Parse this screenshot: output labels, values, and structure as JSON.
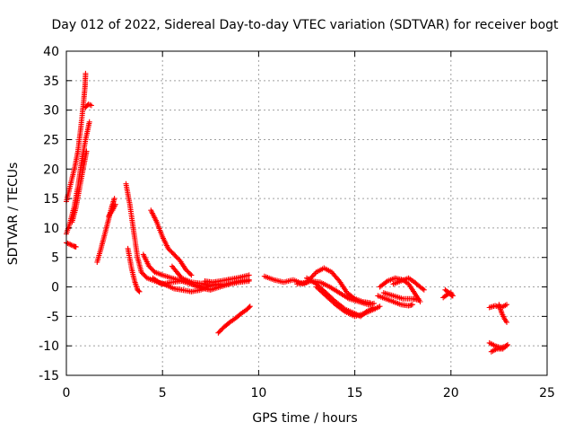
{
  "chart_data": {
    "type": "scatter",
    "title": "Day 012 of 2022, Sidereal Day-to-day VTEC variation (SDTVAR) for receiver bogt",
    "xlabel": "GPS time / hours",
    "ylabel": "SDTVAR / TECUs",
    "xlim": [
      0,
      25
    ],
    "ylim": [
      -15,
      40
    ],
    "xticks": [
      "0",
      "5",
      "10",
      "15",
      "20",
      "25"
    ],
    "yticks": [
      "-15",
      "-10",
      "-5",
      "0",
      "5",
      "10",
      "15",
      "20",
      "25",
      "30",
      "35",
      "40"
    ],
    "grid": true,
    "marker": "plus",
    "series_color": "#ff0000",
    "segments": [
      [
        [
          0.0,
          7.5
        ],
        [
          0.2,
          7.2
        ],
        [
          0.4,
          6.9
        ],
        [
          0.5,
          6.8
        ]
      ],
      [
        [
          0.0,
          14.5
        ],
        [
          0.15,
          16.5
        ],
        [
          0.3,
          18.5
        ],
        [
          0.45,
          20.5
        ],
        [
          0.6,
          23
        ],
        [
          0.75,
          27
        ],
        [
          0.9,
          31.5
        ],
        [
          0.97,
          34
        ],
        [
          1.0,
          36.2
        ]
      ],
      [
        [
          0.0,
          9.0
        ],
        [
          0.2,
          11.0
        ],
        [
          0.4,
          13.5
        ],
        [
          0.6,
          17.0
        ],
        [
          0.8,
          21.5
        ],
        [
          1.0,
          25.0
        ],
        [
          1.2,
          28.0
        ]
      ],
      [
        [
          0.3,
          11.0
        ],
        [
          0.5,
          13.5
        ],
        [
          0.7,
          17.0
        ],
        [
          0.9,
          20.5
        ],
        [
          1.05,
          23.0
        ]
      ],
      [
        [
          1.0,
          30.5
        ],
        [
          1.15,
          31.0
        ],
        [
          1.3,
          30.8
        ]
      ],
      [
        [
          1.6,
          4.2
        ],
        [
          1.8,
          6.5
        ],
        [
          2.0,
          9.0
        ],
        [
          2.2,
          11.5
        ],
        [
          2.35,
          13.5
        ],
        [
          2.5,
          15.0
        ]
      ],
      [
        [
          2.2,
          12.0
        ],
        [
          2.4,
          13.0
        ],
        [
          2.55,
          14.0
        ]
      ],
      [
        [
          3.1,
          17.5
        ],
        [
          3.3,
          14.0
        ],
        [
          3.5,
          9.5
        ],
        [
          3.7,
          5.0
        ],
        [
          3.9,
          2.5
        ],
        [
          4.2,
          1.5
        ],
        [
          4.6,
          1.0
        ],
        [
          5.0,
          0.5
        ],
        [
          5.5,
          0.8
        ],
        [
          6.0,
          1.0
        ],
        [
          6.5,
          0.5
        ],
        [
          7.0,
          0.0
        ],
        [
          7.5,
          -0.5
        ]
      ],
      [
        [
          3.2,
          6.5
        ],
        [
          3.4,
          3.0
        ],
        [
          3.55,
          1.0
        ],
        [
          3.7,
          -0.5
        ],
        [
          3.8,
          -0.8
        ]
      ],
      [
        [
          4.0,
          5.5
        ],
        [
          4.3,
          3.5
        ],
        [
          4.6,
          2.5
        ],
        [
          5.0,
          2.0
        ],
        [
          5.5,
          1.5
        ],
        [
          6.0,
          1.0
        ],
        [
          6.5,
          0.5
        ],
        [
          7.0,
          0.2
        ]
      ],
      [
        [
          4.4,
          13.0
        ],
        [
          4.7,
          11.0
        ],
        [
          5.0,
          8.5
        ],
        [
          5.3,
          6.5
        ],
        [
          5.6,
          5.5
        ],
        [
          5.9,
          4.5
        ],
        [
          6.2,
          3.0
        ],
        [
          6.5,
          2.0
        ]
      ],
      [
        [
          4.5,
          1.5
        ],
        [
          4.8,
          0.8
        ],
        [
          5.2,
          0.3
        ],
        [
          5.6,
          -0.3
        ],
        [
          6.0,
          -0.5
        ],
        [
          6.5,
          -0.8
        ],
        [
          7.0,
          -0.5
        ],
        [
          7.5,
          0.3
        ],
        [
          8.0,
          0.5
        ]
      ],
      [
        [
          5.5,
          3.5
        ],
        [
          6.0,
          1.5
        ],
        [
          6.5,
          0.8
        ],
        [
          7.0,
          0.6
        ],
        [
          7.5,
          0.2
        ],
        [
          8.0,
          0.3
        ],
        [
          8.5,
          0.6
        ],
        [
          9.0,
          1.0
        ],
        [
          9.5,
          1.2
        ]
      ],
      [
        [
          7.2,
          1.0
        ],
        [
          7.6,
          0.8
        ],
        [
          8.0,
          1.0
        ],
        [
          8.5,
          1.3
        ],
        [
          9.0,
          1.6
        ],
        [
          9.5,
          2.0
        ]
      ],
      [
        [
          6.5,
          0.5
        ],
        [
          7.0,
          -0.2
        ],
        [
          7.5,
          -0.5
        ],
        [
          8.0,
          0.0
        ],
        [
          8.5,
          0.5
        ],
        [
          9.0,
          0.8
        ],
        [
          9.5,
          1.0
        ]
      ],
      [
        [
          7.9,
          -7.8
        ],
        [
          8.2,
          -6.8
        ],
        [
          8.5,
          -6.0
        ],
        [
          8.8,
          -5.3
        ],
        [
          9.1,
          -4.5
        ],
        [
          9.4,
          -3.8
        ],
        [
          9.55,
          -3.3
        ]
      ],
      [
        [
          10.3,
          1.8
        ],
        [
          10.8,
          1.2
        ],
        [
          11.3,
          0.8
        ],
        [
          11.8,
          1.2
        ],
        [
          12.3,
          0.5
        ],
        [
          12.7,
          1.0
        ],
        [
          13.2,
          0.8
        ],
        [
          13.7,
          0.0
        ],
        [
          14.2,
          -1.0
        ],
        [
          14.7,
          -2.0
        ],
        [
          15.2,
          -2.5
        ],
        [
          15.7,
          -3.0
        ],
        [
          16.0,
          -2.8
        ]
      ],
      [
        [
          12.0,
          0.5
        ],
        [
          12.5,
          0.8
        ],
        [
          13.0,
          2.5
        ],
        [
          13.4,
          3.2
        ],
        [
          13.8,
          2.5
        ],
        [
          14.2,
          1.0
        ],
        [
          14.6,
          -1.0
        ],
        [
          15.0,
          -2.0
        ],
        [
          15.4,
          -2.5
        ],
        [
          15.8,
          -2.7
        ]
      ],
      [
        [
          12.5,
          1.5
        ],
        [
          13.0,
          0.5
        ],
        [
          13.5,
          -1.0
        ],
        [
          14.0,
          -2.5
        ],
        [
          14.5,
          -3.8
        ],
        [
          15.0,
          -4.5
        ],
        [
          15.3,
          -5.0
        ],
        [
          15.6,
          -4.2
        ],
        [
          16.0,
          -3.5
        ]
      ],
      [
        [
          13.0,
          0.0
        ],
        [
          13.5,
          -1.5
        ],
        [
          14.0,
          -3.0
        ],
        [
          14.5,
          -4.2
        ],
        [
          15.0,
          -5.0
        ],
        [
          15.5,
          -4.5
        ],
        [
          16.0,
          -3.8
        ],
        [
          16.3,
          -3.3
        ]
      ],
      [
        [
          16.2,
          -1.5
        ],
        [
          16.6,
          -2.0
        ],
        [
          17.0,
          -2.5
        ],
        [
          17.4,
          -3.0
        ],
        [
          17.8,
          -3.2
        ],
        [
          18.0,
          -3.0
        ]
      ],
      [
        [
          16.3,
          0.0
        ],
        [
          16.7,
          1.0
        ],
        [
          17.1,
          1.5
        ],
        [
          17.5,
          1.2
        ],
        [
          17.8,
          0.5
        ],
        [
          18.0,
          -0.5
        ],
        [
          18.2,
          -1.5
        ],
        [
          18.4,
          -2.5
        ]
      ],
      [
        [
          17.0,
          0.5
        ],
        [
          17.4,
          1.0
        ],
        [
          17.8,
          1.5
        ],
        [
          18.1,
          0.8
        ],
        [
          18.4,
          0.0
        ],
        [
          18.6,
          -0.5
        ]
      ],
      [
        [
          16.5,
          -1.0
        ],
        [
          17.0,
          -1.5
        ],
        [
          17.5,
          -2.0
        ],
        [
          18.0,
          -2.0
        ],
        [
          18.3,
          -2.2
        ]
      ],
      [
        [
          19.6,
          -1.8
        ],
        [
          19.8,
          -1.3
        ],
        [
          20.0,
          -1.0
        ],
        [
          20.1,
          -1.5
        ]
      ],
      [
        [
          19.7,
          -0.5
        ],
        [
          19.9,
          -1.0
        ],
        [
          20.05,
          -1.5
        ]
      ],
      [
        [
          22.0,
          -3.5
        ],
        [
          22.3,
          -3.2
        ],
        [
          22.6,
          -3.5
        ],
        [
          22.9,
          -3.0
        ]
      ],
      [
        [
          22.5,
          -3.0
        ],
        [
          22.65,
          -4.5
        ],
        [
          22.8,
          -5.5
        ],
        [
          22.9,
          -6.0
        ]
      ],
      [
        [
          22.0,
          -9.5
        ],
        [
          22.3,
          -10.0
        ],
        [
          22.6,
          -10.3
        ],
        [
          22.9,
          -10.0
        ]
      ],
      [
        [
          22.1,
          -11.0
        ],
        [
          22.4,
          -10.5
        ],
        [
          22.7,
          -10.5
        ],
        [
          22.95,
          -9.8
        ]
      ]
    ]
  }
}
